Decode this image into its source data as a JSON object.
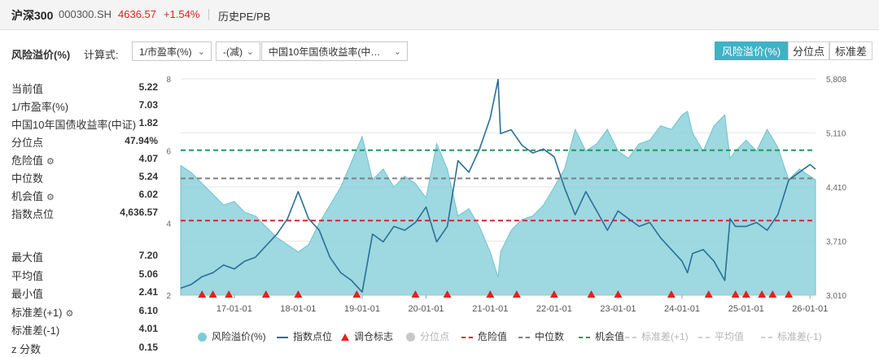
{
  "header": {
    "name": "沪深300",
    "code": "000300.SH",
    "price": "4636.57",
    "change": "+1.54%",
    "history_link": "历史PE/PB"
  },
  "controls": {
    "section_title": "风险溢价(%)",
    "formula_label": "计算式:",
    "select1": "1/市盈率(%)",
    "select2": "-(减)",
    "select3": "中国10年国债收益率(中…"
  },
  "tabs": [
    "风险溢价(%)",
    "分位点",
    "标准差"
  ],
  "stats_top": [
    {
      "label": "当前值",
      "value": "5.22",
      "gear": false
    },
    {
      "label": "1/市盈率(%)",
      "value": "7.03",
      "gear": false
    },
    {
      "label": "中国10年国债收益率(中证)",
      "value": "1.82",
      "gear": false
    },
    {
      "label": "分位点",
      "value": "47.94%",
      "gear": false
    },
    {
      "label": "危险值",
      "value": "4.07",
      "gear": true
    },
    {
      "label": "中位数",
      "value": "5.24",
      "gear": false
    },
    {
      "label": "机会值",
      "value": "6.02",
      "gear": true
    },
    {
      "label": "指数点位",
      "value": "4,636.57",
      "gear": false
    }
  ],
  "stats_bottom": [
    {
      "label": "最大值",
      "value": "7.20",
      "gear": false
    },
    {
      "label": "平均值",
      "value": "5.06",
      "gear": false
    },
    {
      "label": "最小值",
      "value": "2.41",
      "gear": false
    },
    {
      "label": "标准差(+1)",
      "value": "6.10",
      "gear": true
    },
    {
      "label": "标准差(-1)",
      "value": "4.01",
      "gear": false
    },
    {
      "label": "z 分数",
      "value": "0.15",
      "gear": false
    }
  ],
  "legend": [
    {
      "label": "风险溢价(%)",
      "symbol": "dot",
      "color": "#7ccbd6",
      "dim": false
    },
    {
      "label": "指数点位",
      "symbol": "line",
      "color": "#2a6f97",
      "dim": false
    },
    {
      "label": "调仓标志",
      "symbol": "triangle",
      "color": "#e8201e",
      "dim": false
    },
    {
      "label": "分位点",
      "symbol": "dot",
      "color": "#c8c8c8",
      "dim": true
    },
    {
      "label": "危险值",
      "symbol": "dash",
      "color": "#d62728",
      "dim": false
    },
    {
      "label": "中位数",
      "symbol": "dash",
      "color": "#808080",
      "dim": false
    },
    {
      "label": "机会值",
      "symbol": "dash",
      "color": "#1f9a5a",
      "dim": false
    },
    {
      "label": "标准差(+1)",
      "symbol": "dash",
      "color": "#d0d0d0",
      "dim": true
    },
    {
      "label": "平均值",
      "symbol": "dash",
      "color": "#d0d0d0",
      "dim": true
    },
    {
      "label": "标准差(-1)",
      "symbol": "dash",
      "color": "#d0d0d0",
      "dim": true
    }
  ],
  "chart_data": {
    "type": "area",
    "left_axis": {
      "ylim": [
        2,
        8
      ],
      "ticks": [
        "2",
        "4",
        "6",
        "8"
      ]
    },
    "right_axis": {
      "ylim": [
        3010,
        5808
      ],
      "ticks": [
        "3,010",
        "3,710",
        "4,410",
        "5,110",
        "5,808"
      ]
    },
    "xlim": [
      "2016-03-01",
      "2026-02-01"
    ],
    "x_ticks": [
      "17-01-01",
      "18-01-01",
      "19-01-01",
      "20-01-01",
      "21-01-01",
      "22-01-01",
      "23-01-01",
      "24-01-01",
      "25-01-01",
      "26-01-01"
    ],
    "reference_lines": {
      "danger": 4.07,
      "median": 5.24,
      "opportunity": 6.02
    },
    "colors": {
      "area": "#8dd1da",
      "index": "#2a6f97",
      "danger": "#d62728",
      "median": "#808080",
      "opportunity": "#1f9a5a",
      "marker": "#e8201e"
    },
    "series": [
      {
        "name": "风险溢价(%)",
        "axis": "left",
        "x": [
          "2016-03-01",
          "2016-05-01",
          "2016-07-01",
          "2016-09-01",
          "2016-11-01",
          "2017-01-01",
          "2017-03-01",
          "2017-05-01",
          "2017-07-01",
          "2017-09-01",
          "2017-11-01",
          "2018-01-01",
          "2018-03-01",
          "2018-05-01",
          "2018-07-01",
          "2018-09-01",
          "2018-11-01",
          "2019-01-01",
          "2019-03-01",
          "2019-05-01",
          "2019-07-01",
          "2019-09-01",
          "2019-11-01",
          "2020-01-01",
          "2020-03-01",
          "2020-05-01",
          "2020-07-01",
          "2020-09-01",
          "2020-11-01",
          "2021-01-01",
          "2021-02-15",
          "2021-03-01",
          "2021-05-01",
          "2021-07-01",
          "2021-09-01",
          "2021-11-01",
          "2022-01-01",
          "2022-03-01",
          "2022-05-01",
          "2022-07-01",
          "2022-09-01",
          "2022-11-01",
          "2023-01-01",
          "2023-03-01",
          "2023-05-01",
          "2023-07-01",
          "2023-09-01",
          "2023-11-01",
          "2024-01-01",
          "2024-02-01",
          "2024-03-01",
          "2024-05-01",
          "2024-07-01",
          "2024-09-01",
          "2024-10-01",
          "2024-11-01",
          "2025-01-01",
          "2025-03-01",
          "2025-05-01",
          "2025-07-01",
          "2025-09-01",
          "2025-11-01",
          "2026-01-01",
          "2026-02-01"
        ],
        "values": [
          5.6,
          5.4,
          5.1,
          4.8,
          4.5,
          4.6,
          4.3,
          4.2,
          3.9,
          3.6,
          3.4,
          3.2,
          3.4,
          4.0,
          4.5,
          5.0,
          5.7,
          6.4,
          5.2,
          5.5,
          5.0,
          5.3,
          5.1,
          4.7,
          6.2,
          5.5,
          4.2,
          4.4,
          3.9,
          3.2,
          2.5,
          3.2,
          3.8,
          4.1,
          4.2,
          4.5,
          5.0,
          5.5,
          6.6,
          6.0,
          6.2,
          6.6,
          6.0,
          5.8,
          6.2,
          6.3,
          6.7,
          6.6,
          7.0,
          7.1,
          6.5,
          6.0,
          6.7,
          7.0,
          5.8,
          6.0,
          6.3,
          6.0,
          6.6,
          6.1,
          5.2,
          5.5,
          5.3,
          5.2
        ]
      },
      {
        "name": "指数点位",
        "axis": "right",
        "x": [
          "2016-03-01",
          "2016-05-01",
          "2016-07-01",
          "2016-09-01",
          "2016-11-01",
          "2017-01-01",
          "2017-03-01",
          "2017-05-01",
          "2017-07-01",
          "2017-09-01",
          "2017-11-01",
          "2018-01-01",
          "2018-03-01",
          "2018-05-01",
          "2018-07-01",
          "2018-09-01",
          "2018-11-01",
          "2019-01-01",
          "2019-03-01",
          "2019-05-01",
          "2019-07-01",
          "2019-09-01",
          "2019-11-01",
          "2020-01-01",
          "2020-03-01",
          "2020-05-01",
          "2020-07-01",
          "2020-09-01",
          "2020-11-01",
          "2021-01-01",
          "2021-02-15",
          "2021-03-01",
          "2021-05-01",
          "2021-07-01",
          "2021-09-01",
          "2021-11-01",
          "2022-01-01",
          "2022-03-01",
          "2022-05-01",
          "2022-07-01",
          "2022-09-01",
          "2022-11-01",
          "2023-01-01",
          "2023-03-01",
          "2023-05-01",
          "2023-07-01",
          "2023-09-01",
          "2023-11-01",
          "2024-01-01",
          "2024-02-01",
          "2024-03-01",
          "2024-05-01",
          "2024-07-01",
          "2024-09-01",
          "2024-10-01",
          "2024-11-01",
          "2025-01-01",
          "2025-03-01",
          "2025-05-01",
          "2025-07-01",
          "2025-09-01",
          "2025-11-01",
          "2026-01-01",
          "2026-02-01"
        ],
        "values": [
          3100,
          3150,
          3250,
          3300,
          3400,
          3350,
          3450,
          3500,
          3650,
          3800,
          4000,
          4350,
          4000,
          3850,
          3500,
          3300,
          3200,
          3050,
          3800,
          3700,
          3900,
          3850,
          3950,
          4150,
          3700,
          3900,
          4750,
          4600,
          4900,
          5300,
          5800,
          5100,
          5150,
          4950,
          4850,
          4900,
          4800,
          4400,
          4050,
          4350,
          4100,
          3850,
          4100,
          4000,
          3900,
          3950,
          3750,
          3600,
          3450,
          3300,
          3550,
          3600,
          3450,
          3200,
          4000,
          3900,
          3900,
          3950,
          3850,
          4050,
          4500,
          4600,
          4700,
          4640
        ]
      }
    ],
    "adjust_markers_x": [
      "2016-07-01",
      "2016-09-01",
      "2016-12-01",
      "2017-07-01",
      "2018-01-01",
      "2018-12-01",
      "2019-11-01",
      "2020-05-01",
      "2021-01-01",
      "2021-06-01",
      "2022-01-01",
      "2022-08-01",
      "2023-01-01",
      "2023-11-01",
      "2024-06-01",
      "2024-11-01",
      "2025-01-01",
      "2025-04-01",
      "2025-06-01",
      "2025-09-01"
    ]
  }
}
